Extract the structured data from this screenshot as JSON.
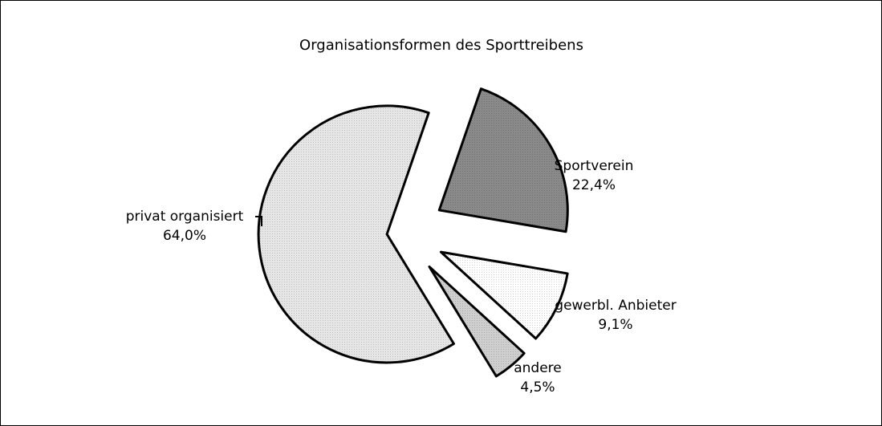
{
  "chart_data": {
    "type": "pie",
    "title": "Organisationsformen des Sporttreibens",
    "categories": [
      "Sportverein",
      "gewerbl. Anbieter",
      "andere",
      "privat organisiert"
    ],
    "values": [
      22.4,
      9.1,
      4.5,
      64.0
    ],
    "value_labels": [
      "22,4%",
      "9,1%",
      "4,5%",
      "64,0%"
    ],
    "colors": [
      "#8a8a8a",
      "#ffffff",
      "#cfcfcf",
      "#e6e6e6"
    ]
  }
}
